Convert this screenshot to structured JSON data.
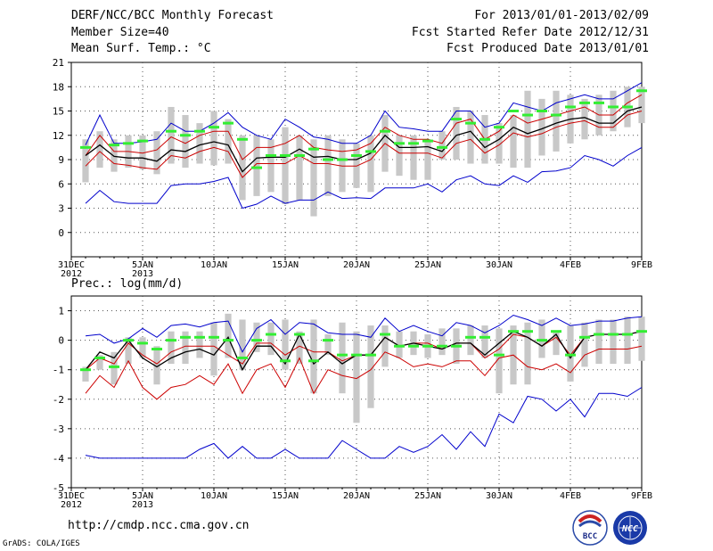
{
  "header": {
    "title": "DERF/NCC/BCC Monthly Forecast",
    "member_size": "Member Size=40",
    "variable_label": "Mean Surf. Temp.: °C",
    "forecast_range": "For 2013/01/01-2013/02/09",
    "start_date": "Fcst Started Refer Date 2012/12/31",
    "produced_date": "Fcst Produced Date 2013/01/01"
  },
  "footer": {
    "url": "http://cmdp.ncc.cma.gov.cn",
    "credit": "GrADS: COLA/IGES",
    "logo_left_text": "BCC",
    "logo_right_text": "NCC"
  },
  "colors": {
    "ensemble_mean": "#000000",
    "percentile_band": "#cc0000",
    "envelope": "#0000cc",
    "observed_marker": "#33ee33",
    "spread_bar": "#c8c8c8",
    "grid": "#555555"
  },
  "chart_data": [
    {
      "type": "line",
      "title": "Mean Surf. Temp.: °C",
      "x": [
        0,
        1,
        2,
        3,
        4,
        5,
        6,
        7,
        8,
        9,
        10,
        11,
        12,
        13,
        14,
        15,
        16,
        17,
        18,
        19,
        20,
        21,
        22,
        23,
        24,
        25,
        26,
        27,
        28,
        29,
        30,
        31,
        32,
        33,
        34,
        35,
        36,
        37,
        38,
        39,
        40
      ],
      "xlim": [
        0,
        40
      ],
      "ylim": [
        -3,
        21
      ],
      "yticks": [
        0,
        3,
        6,
        9,
        12,
        15,
        18,
        21
      ],
      "xticks": [
        {
          "x": 0,
          "label": "31DEC",
          "sub": "2012"
        },
        {
          "x": 5,
          "label": "5JAN",
          "sub": "2013"
        },
        {
          "x": 10,
          "label": "10JAN",
          "sub": ""
        },
        {
          "x": 15,
          "label": "15JAN",
          "sub": ""
        },
        {
          "x": 20,
          "label": "20JAN",
          "sub": ""
        },
        {
          "x": 25,
          "label": "25JAN",
          "sub": ""
        },
        {
          "x": 30,
          "label": "30JAN",
          "sub": ""
        },
        {
          "x": 35,
          "label": "4FEB",
          "sub": ""
        },
        {
          "x": 40,
          "label": "9FEB",
          "sub": ""
        }
      ],
      "bars": {
        "x": [
          1,
          2,
          3,
          4,
          5,
          6,
          7,
          8,
          9,
          10,
          11,
          12,
          13,
          14,
          15,
          16,
          17,
          18,
          19,
          20,
          21,
          22,
          23,
          24,
          25,
          26,
          27,
          28,
          29,
          30,
          31,
          32,
          33,
          34,
          35,
          36,
          37,
          38,
          39,
          40
        ],
        "low": [
          6.2,
          8.0,
          7.5,
          8.0,
          7.8,
          7.2,
          8.5,
          8.0,
          8.5,
          8.3,
          8.5,
          4.0,
          4.5,
          5.0,
          3.5,
          4.0,
          2.0,
          4.5,
          5.0,
          5.5,
          5.0,
          7.5,
          7.0,
          6.5,
          6.5,
          9.0,
          9.0,
          8.5,
          8.5,
          8.5,
          8.0,
          8.0,
          9.5,
          10.0,
          11.0,
          11.5,
          12.0,
          12.5,
          13.0,
          13.5
        ],
        "high": [
          11.5,
          12.5,
          11.5,
          12.0,
          12.0,
          12.5,
          15.5,
          14.5,
          13.5,
          15.0,
          14.0,
          12.0,
          12.0,
          11.5,
          13.0,
          12.0,
          11.5,
          12.0,
          11.5,
          11.0,
          12.0,
          14.5,
          12.0,
          12.0,
          11.5,
          12.5,
          15.5,
          15.0,
          14.5,
          13.5,
          14.5,
          17.5,
          16.5,
          17.5,
          17.0,
          16.5,
          17.0,
          17.5,
          18.0,
          18.0
        ]
      },
      "series": [
        {
          "name": "max",
          "color_key": "envelope",
          "values": [
            null,
            10.8,
            14.5,
            11.0,
            11.0,
            11.2,
            11.5,
            13.5,
            12.5,
            12.5,
            13.5,
            14.8,
            13.0,
            12.0,
            11.5,
            14.0,
            13.0,
            11.8,
            11.5,
            11.0,
            11.0,
            12.0,
            15.0,
            13.0,
            12.8,
            12.5,
            12.5,
            15.0,
            15.0,
            13.0,
            13.5,
            16.0,
            15.5,
            15.0,
            16.0,
            16.5,
            17.0,
            16.5,
            16.5,
            17.5,
            18.5
          ]
        },
        {
          "name": "p75",
          "color_key": "percentile_band",
          "values": [
            null,
            9.5,
            12.0,
            10.0,
            10.0,
            9.8,
            10.2,
            11.8,
            11.0,
            12.0,
            12.5,
            12.5,
            9.0,
            10.5,
            10.5,
            11.0,
            12.0,
            10.5,
            10.2,
            10.0,
            10.2,
            11.0,
            13.0,
            12.0,
            11.5,
            11.5,
            11.0,
            13.5,
            14.0,
            11.5,
            12.5,
            14.5,
            13.5,
            14.0,
            14.5,
            15.0,
            15.5,
            14.5,
            14.5,
            16.0,
            17.0
          ]
        },
        {
          "name": "mean",
          "color_key": "ensemble_mean",
          "values": [
            null,
            9.5,
            10.8,
            9.4,
            9.2,
            9.2,
            8.8,
            10.2,
            10.0,
            10.8,
            11.2,
            10.8,
            7.5,
            9.2,
            9.3,
            9.3,
            10.3,
            9.3,
            9.4,
            9.0,
            9.0,
            9.8,
            12.0,
            10.5,
            10.5,
            10.6,
            10.0,
            12.0,
            12.5,
            10.5,
            11.5,
            13.0,
            12.2,
            12.8,
            13.5,
            14.0,
            14.2,
            13.5,
            13.5,
            15.0,
            15.5
          ]
        },
        {
          "name": "p25",
          "color_key": "percentile_band",
          "values": [
            null,
            8.2,
            10.0,
            8.5,
            8.3,
            8.0,
            7.8,
            9.5,
            9.2,
            10.0,
            10.5,
            10.0,
            6.8,
            8.5,
            8.5,
            8.5,
            9.5,
            8.5,
            8.5,
            8.2,
            8.2,
            9.0,
            11.0,
            9.8,
            9.8,
            9.8,
            9.2,
            11.0,
            11.5,
            9.8,
            10.8,
            12.3,
            11.8,
            12.2,
            13.0,
            13.5,
            13.8,
            13.0,
            13.0,
            14.5,
            15.0
          ]
        },
        {
          "name": "min",
          "color_key": "envelope",
          "values": [
            null,
            3.6,
            5.2,
            3.8,
            3.6,
            3.6,
            3.6,
            5.8,
            6.0,
            6.0,
            6.3,
            6.8,
            3.0,
            3.5,
            4.5,
            3.6,
            4.0,
            4.0,
            5.0,
            4.2,
            4.3,
            4.2,
            5.5,
            5.5,
            5.5,
            6.0,
            5.0,
            6.5,
            7.0,
            6.0,
            5.8,
            7.0,
            6.2,
            7.5,
            7.6,
            8.0,
            9.5,
            9.0,
            8.2,
            9.5,
            10.5
          ]
        }
      ],
      "observed": {
        "x": [
          1,
          3,
          4,
          5,
          7,
          8,
          9,
          10,
          11,
          12,
          13,
          14,
          15,
          16,
          17,
          18,
          19,
          20,
          21,
          22,
          23,
          24,
          25,
          26,
          27,
          28,
          29,
          30,
          31,
          32,
          33,
          34,
          35,
          36,
          37,
          38,
          39,
          40
        ],
        "values": [
          10.5,
          10.8,
          11.0,
          11.3,
          12.5,
          12.0,
          12.5,
          13.0,
          13.5,
          11.5,
          8.0,
          9.5,
          9.5,
          9.5,
          10.3,
          9.0,
          9.0,
          9.5,
          10.0,
          12.5,
          11.0,
          11.0,
          11.3,
          10.5,
          14.0,
          13.5,
          11.5,
          13.0,
          15.0,
          14.5,
          15.0,
          14.5,
          15.5,
          16.0,
          16.0,
          15.5,
          15.5,
          17.5
        ]
      }
    },
    {
      "type": "line",
      "title": "Prec.: log(mm/d)",
      "x": [
        0,
        1,
        2,
        3,
        4,
        5,
        6,
        7,
        8,
        9,
        10,
        11,
        12,
        13,
        14,
        15,
        16,
        17,
        18,
        19,
        20,
        21,
        22,
        23,
        24,
        25,
        26,
        27,
        28,
        29,
        30,
        31,
        32,
        33,
        34,
        35,
        36,
        37,
        38,
        39,
        40
      ],
      "xlim": [
        0,
        40
      ],
      "ylim": [
        -5,
        1.5
      ],
      "yticks": [
        -5,
        -4,
        -3,
        -2,
        -1,
        0,
        1
      ],
      "xticks": [
        {
          "x": 0,
          "label": "31DEC",
          "sub": "2012"
        },
        {
          "x": 5,
          "label": "5JAN",
          "sub": "2013"
        },
        {
          "x": 10,
          "label": "10JAN",
          "sub": ""
        },
        {
          "x": 15,
          "label": "15JAN",
          "sub": ""
        },
        {
          "x": 20,
          "label": "20JAN",
          "sub": ""
        },
        {
          "x": 25,
          "label": "25JAN",
          "sub": ""
        },
        {
          "x": 30,
          "label": "30JAN",
          "sub": ""
        },
        {
          "x": 35,
          "label": "4FEB",
          "sub": ""
        },
        {
          "x": 40,
          "label": "9FEB",
          "sub": ""
        }
      ],
      "bars": {
        "x": [
          1,
          2,
          3,
          4,
          5,
          6,
          7,
          8,
          9,
          10,
          11,
          12,
          13,
          14,
          15,
          16,
          17,
          18,
          19,
          20,
          21,
          22,
          23,
          24,
          25,
          26,
          27,
          28,
          29,
          30,
          31,
          32,
          33,
          34,
          35,
          36,
          37,
          38,
          39,
          40
        ],
        "low": [
          -1.4,
          -1.0,
          -1.5,
          -0.8,
          -0.6,
          -1.5,
          -0.8,
          -0.8,
          -0.6,
          -1.2,
          -0.6,
          -1.0,
          -0.4,
          -0.5,
          -1.0,
          -0.8,
          -1.8,
          -0.5,
          -1.8,
          -2.8,
          -2.3,
          -0.9,
          -0.6,
          -0.5,
          -0.6,
          -0.5,
          -0.8,
          -0.5,
          -0.6,
          -1.8,
          -1.5,
          -1.5,
          -0.6,
          -0.5,
          -1.4,
          -0.9,
          -0.8,
          -0.8,
          -0.8,
          -0.7
        ],
        "high": [
          -0.9,
          -0.5,
          -0.4,
          0.1,
          0.1,
          -0.2,
          0.3,
          0.3,
          0.3,
          0.6,
          0.9,
          0.7,
          0.6,
          0.6,
          0.7,
          0.3,
          0.7,
          0.2,
          0.6,
          0.3,
          0.5,
          0.5,
          0.3,
          0.3,
          0.2,
          0.4,
          0.4,
          0.5,
          0.5,
          0.4,
          0.5,
          0.6,
          0.7,
          0.3,
          0.5,
          0.6,
          0.7,
          0.7,
          0.8,
          0.8
        ]
      },
      "series": [
        {
          "name": "max",
          "color_key": "envelope",
          "values": [
            null,
            0.15,
            0.2,
            -0.1,
            0.05,
            0.4,
            0.1,
            0.5,
            0.55,
            0.45,
            0.6,
            0.65,
            -0.4,
            0.4,
            0.7,
            0.2,
            0.6,
            0.55,
            0.25,
            0.2,
            0.2,
            0.1,
            0.75,
            0.3,
            0.5,
            0.3,
            0.15,
            0.6,
            0.5,
            0.25,
            0.5,
            0.85,
            0.7,
            0.5,
            0.75,
            0.5,
            0.55,
            0.65,
            0.65,
            0.75,
            0.8
          ]
        },
        {
          "name": "p75",
          "color_key": "percentile_band",
          "values": [
            null,
            -1.0,
            -0.6,
            -0.8,
            -0.1,
            -0.5,
            -0.8,
            -0.4,
            -0.2,
            -0.2,
            -0.2,
            -0.5,
            -0.8,
            -0.1,
            -0.1,
            -0.5,
            -0.2,
            -0.4,
            -0.4,
            -0.7,
            -0.5,
            -0.5,
            0.1,
            -0.2,
            -0.1,
            -0.1,
            -0.3,
            -0.1,
            -0.1,
            -0.6,
            -0.3,
            0.2,
            0.1,
            -0.2,
            0.1,
            -0.5,
            0.1,
            0.2,
            0.2,
            0.2,
            0.3
          ]
        },
        {
          "name": "mean",
          "color_key": "ensemble_mean",
          "values": [
            null,
            -1.0,
            -0.4,
            -0.6,
            0.0,
            -0.6,
            -0.9,
            -0.6,
            -0.4,
            -0.3,
            -0.5,
            0.1,
            -1.0,
            -0.2,
            -0.2,
            -0.8,
            0.2,
            -0.8,
            -0.4,
            -0.8,
            -0.5,
            -0.5,
            0.1,
            -0.2,
            -0.1,
            -0.2,
            -0.3,
            -0.1,
            -0.1,
            -0.5,
            -0.1,
            0.3,
            0.1,
            -0.2,
            0.2,
            -0.6,
            0.1,
            0.2,
            0.2,
            0.2,
            0.3
          ]
        },
        {
          "name": "p25",
          "color_key": "percentile_band",
          "values": [
            null,
            -1.8,
            -1.2,
            -1.6,
            -0.7,
            -1.6,
            -2.0,
            -1.6,
            -1.5,
            -1.2,
            -1.5,
            -0.8,
            -1.8,
            -1.0,
            -0.8,
            -1.6,
            -0.6,
            -1.8,
            -1.0,
            -1.2,
            -1.3,
            -1.0,
            -0.4,
            -0.6,
            -0.9,
            -0.8,
            -0.9,
            -0.7,
            -0.7,
            -1.2,
            -0.6,
            -0.5,
            -0.9,
            -1.0,
            -0.8,
            -1.1,
            -0.5,
            -0.3,
            -0.3,
            -0.3,
            -0.2
          ]
        },
        {
          "name": "min",
          "color_key": "envelope",
          "values": [
            null,
            -3.9,
            -4.0,
            -4.0,
            -4.0,
            -4.0,
            -4.0,
            -4.0,
            -4.0,
            -3.7,
            -3.5,
            -4.0,
            -3.6,
            -4.0,
            -4.0,
            -3.7,
            -4.0,
            -4.0,
            -4.0,
            -3.4,
            -3.7,
            -4.0,
            -4.0,
            -3.6,
            -3.8,
            -3.6,
            -3.2,
            -3.7,
            -3.1,
            -3.6,
            -2.5,
            -2.8,
            -1.9,
            -2.0,
            -2.4,
            -2.0,
            -2.6,
            -1.8,
            -1.8,
            -1.9,
            -1.6
          ]
        }
      ],
      "observed": {
        "x": [
          1,
          2,
          3,
          4,
          5,
          6,
          7,
          8,
          9,
          10,
          11,
          12,
          13,
          14,
          15,
          16,
          17,
          18,
          19,
          20,
          21,
          22,
          23,
          24,
          25,
          26,
          27,
          28,
          29,
          30,
          31,
          32,
          33,
          34,
          35,
          36,
          37,
          38,
          39,
          40
        ],
        "values": [
          -1.0,
          -0.6,
          -0.9,
          0.0,
          -0.1,
          -0.3,
          0.0,
          0.1,
          0.1,
          0.1,
          0.0,
          -0.6,
          0.0,
          0.2,
          -0.7,
          0.2,
          -0.7,
          0.0,
          -0.5,
          -0.5,
          -0.5,
          0.2,
          -0.2,
          -0.2,
          -0.2,
          -0.2,
          -0.2,
          0.1,
          0.1,
          -0.5,
          0.3,
          0.3,
          0.0,
          0.3,
          -0.5,
          0.1,
          0.2,
          0.2,
          0.2,
          0.3
        ]
      }
    }
  ]
}
